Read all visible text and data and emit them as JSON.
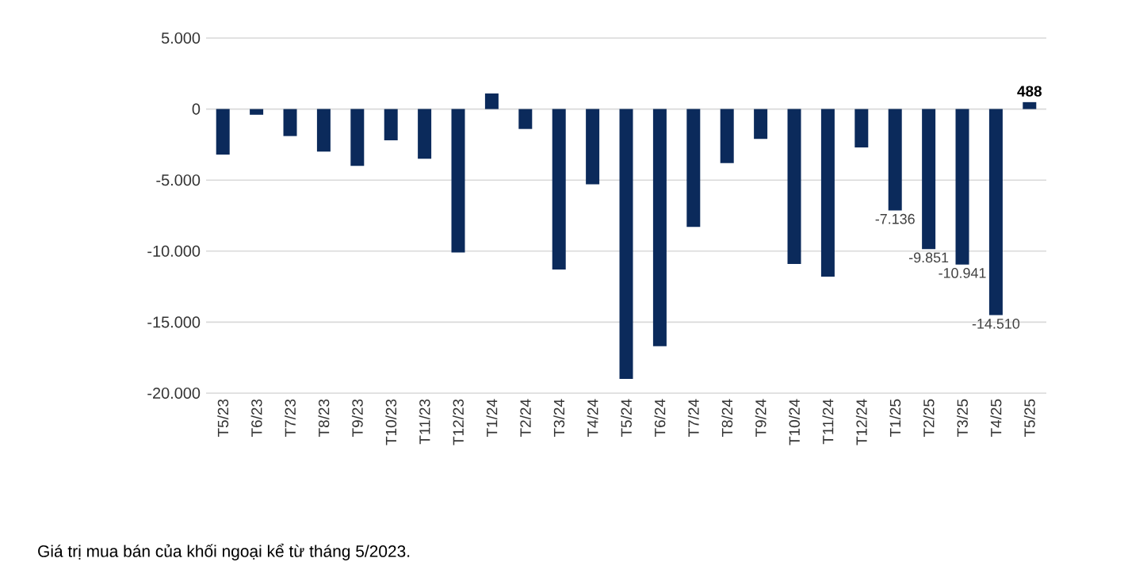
{
  "chart_data": {
    "type": "bar",
    "categories": [
      "T5/23",
      "T6/23",
      "T7/23",
      "T8/23",
      "T9/23",
      "T10/23",
      "T11/23",
      "T12/23",
      "T1/24",
      "T2/24",
      "T3/24",
      "T4/24",
      "T5/24",
      "T6/24",
      "T7/24",
      "T8/24",
      "T9/24",
      "T10/24",
      "T11/24",
      "T12/24",
      "T1/25",
      "T2/25",
      "T3/25",
      "T4/25",
      "T5/25"
    ],
    "values": [
      -3200,
      -400,
      -1900,
      -3000,
      -4000,
      -2200,
      -3500,
      -10100,
      1100,
      -1400,
      -11300,
      -5300,
      -19000,
      -16700,
      -8300,
      -3800,
      -2100,
      -10900,
      -11800,
      -2700,
      -7136,
      -9851,
      -10941,
      -14510,
      488
    ],
    "value_labels": [
      null,
      null,
      null,
      null,
      null,
      null,
      null,
      null,
      null,
      null,
      null,
      null,
      null,
      null,
      null,
      null,
      null,
      null,
      null,
      null,
      "-7.136",
      "-9.851",
      "-10.941",
      "-14.510",
      "488"
    ],
    "color": "#0b2a5b",
    "ylim": [
      -20000,
      5000
    ],
    "yticks": [
      {
        "value": -20000,
        "label": "-20.000"
      },
      {
        "value": -15000,
        "label": "-15.000"
      },
      {
        "value": -10000,
        "label": "-10.000"
      },
      {
        "value": -5000,
        "label": "-5.000"
      },
      {
        "value": 0,
        "label": "0"
      },
      {
        "value": 5000,
        "label": "5.000"
      }
    ],
    "grid": "y",
    "annotations": [
      "Giá trị mua bán của khối ngoại kể từ tháng 5/2023."
    ]
  }
}
